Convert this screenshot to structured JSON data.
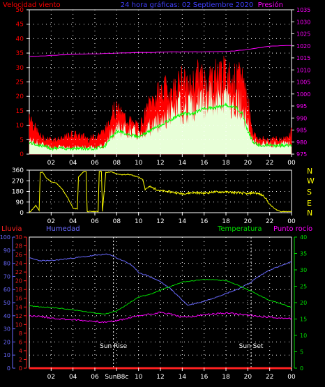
{
  "colors": {
    "wind": "#ff0000",
    "gust": "#ff0000",
    "wind_avg": "#00ff00",
    "wind_fill": "#e8ffd8",
    "title": "#4040ff",
    "pressure": "#ff00ff",
    "direction": "#ffff00",
    "rain": "#ff2020",
    "humidity": "#6a6aff",
    "temperature": "#00dd00",
    "dewpoint": "#ff00ff",
    "axis_white": "#ffffff",
    "sun_line": "#ffffff"
  },
  "chart_data": [
    {
      "type": "line",
      "title": "24 hora gráficas: 02 Septiembre 2020",
      "left_axis_label": "Velocidad viento",
      "right_axis_label": "Presión",
      "x_ticks": [
        "02",
        "04",
        "06",
        "08",
        "10",
        "12",
        "14",
        "16",
        "18",
        "20",
        "22",
        "00"
      ],
      "y_left_ticks": [
        "0",
        "5",
        "10",
        "15",
        "20",
        "25",
        "30",
        "35",
        "40",
        "45",
        "50"
      ],
      "y_left_range": [
        0,
        50
      ],
      "y_right_ticks": [
        "975",
        "980",
        "985",
        "990",
        "995",
        "1000",
        "1005",
        "1010",
        "1015",
        "1020",
        "1025",
        "1030",
        "1035"
      ],
      "y_right_range": [
        975,
        1035
      ],
      "grid": true,
      "series": [
        {
          "name": "gust",
          "x": [
            0,
            0.5,
            1,
            1.5,
            2,
            2.5,
            3,
            3.5,
            4,
            4.5,
            5,
            5.5,
            6,
            6.5,
            7,
            7.5,
            8,
            8.5,
            9,
            9.5,
            10,
            10.5,
            11,
            11.5,
            12,
            12.5,
            13,
            13.5,
            14,
            14.5,
            15,
            15.5,
            16,
            16.5,
            17,
            17.5,
            18,
            18.5,
            19,
            19.5,
            20,
            20.5,
            21,
            21.5,
            22,
            22.5,
            23,
            23.5,
            24
          ],
          "values": [
            14,
            9,
            6,
            5,
            5,
            5,
            5,
            6,
            7,
            6,
            6,
            5,
            6,
            7,
            8,
            14,
            15,
            13,
            12,
            10,
            9,
            12,
            17,
            19,
            21,
            22,
            21,
            23,
            25,
            22,
            24,
            27,
            25,
            26,
            27,
            28,
            27,
            26,
            25,
            27,
            18,
            7,
            5,
            5,
            5,
            5,
            5,
            5,
            8
          ]
        },
        {
          "name": "avg",
          "x": [
            0,
            1,
            2,
            3,
            4,
            5,
            6,
            7,
            7.5,
            8,
            9,
            10,
            11,
            12,
            13,
            14,
            15,
            16,
            17,
            18,
            19,
            19.5,
            20,
            20.5,
            21,
            22,
            23,
            24
          ],
          "values": [
            4,
            3,
            2,
            2,
            2,
            2,
            2,
            3,
            6,
            8,
            7,
            6,
            8,
            10,
            12,
            14,
            14,
            16,
            16,
            17,
            16,
            14,
            8,
            4,
            3,
            3,
            3,
            3
          ]
        },
        {
          "name": "pressure",
          "x": [
            0,
            2,
            4,
            6,
            8,
            10,
            12,
            14,
            16,
            18,
            19,
            20,
            21,
            22,
            23,
            24
          ],
          "values": [
            1015.5,
            1016,
            1016.5,
            1016.7,
            1017,
            1017.2,
            1017.4,
            1017.5,
            1017.5,
            1017.6,
            1018,
            1018.5,
            1019.2,
            1019.8,
            1020.1,
            1020.2
          ]
        }
      ]
    },
    {
      "type": "line",
      "title": "",
      "x_ticks": [
        "02",
        "04",
        "06",
        "08",
        "10",
        "12",
        "14",
        "16",
        "18",
        "20",
        "22",
        "00"
      ],
      "y_ticks": [
        "0",
        "90",
        "180",
        "270",
        "360"
      ],
      "y_range": [
        0,
        360
      ],
      "right_labels": [
        "N",
        "W",
        "S",
        "E",
        "N"
      ],
      "grid": true,
      "series": [
        {
          "name": "direction",
          "x": [
            0,
            0.3,
            0.6,
            0.9,
            1,
            1.2,
            1.5,
            2,
            2.5,
            3,
            3.5,
            4,
            4.4,
            4.5,
            5,
            5.2,
            5.3,
            6.3,
            6.4,
            6.6,
            6.7,
            7,
            7.5,
            8,
            8.5,
            9,
            9.5,
            10,
            10.4,
            10.6,
            11,
            12,
            13,
            14,
            15,
            16,
            17,
            18,
            19,
            20,
            20.5,
            21,
            21.5,
            22,
            22.5,
            23,
            24
          ],
          "values": [
            0,
            30,
            60,
            20,
            340,
            345,
            300,
            260,
            250,
            200,
            130,
            40,
            30,
            300,
            350,
            350,
            10,
            10,
            350,
            350,
            10,
            340,
            345,
            330,
            320,
            325,
            315,
            300,
            280,
            200,
            220,
            185,
            175,
            160,
            170,
            165,
            175,
            175,
            170,
            160,
            170,
            160,
            140,
            70,
            30,
            10,
            10
          ]
        }
      ]
    },
    {
      "type": "line",
      "title": "",
      "labels": {
        "rain": "Lluvia",
        "humidity": "Humedad",
        "temperature": "Temperatura",
        "dewpoint": "Punto rocío"
      },
      "x_ticks": [
        "02",
        "04",
        "06",
        "SunB8c",
        "10",
        "12",
        "14",
        "16",
        "18",
        "20",
        "22",
        "00"
      ],
      "y_humidity_ticks": [
        "0",
        "10",
        "20",
        "30",
        "40",
        "50",
        "60",
        "70",
        "80",
        "90",
        "100"
      ],
      "y_humidity_range": [
        0,
        100
      ],
      "y_rain_ticks": [
        "0",
        "2",
        "4",
        "6",
        "8",
        "10",
        "12",
        "14",
        "16",
        "18",
        "20",
        "22",
        "24",
        "26",
        "28",
        "30"
      ],
      "y_rain_range": [
        0,
        30
      ],
      "y_temp_ticks": [
        "0",
        "5",
        "10",
        "15",
        "20",
        "25",
        "30",
        "35",
        "40"
      ],
      "y_temp_range": [
        0,
        40
      ],
      "annotations": [
        {
          "text": "Sun Rise",
          "x": 7.7
        },
        {
          "text": "Sun Set",
          "x": 20.3
        }
      ],
      "grid": true,
      "series": [
        {
          "name": "rain",
          "x": [
            0,
            24
          ],
          "values": [
            0,
            0
          ]
        },
        {
          "name": "humidity",
          "x": [
            0,
            1,
            2,
            3,
            4,
            5,
            6,
            7,
            7.6,
            8,
            8.6,
            9.3,
            10,
            11,
            12,
            13,
            14,
            14.5,
            15,
            16,
            17,
            18,
            19,
            20,
            21,
            22,
            23,
            24
          ],
          "values": [
            84,
            82,
            82,
            83,
            84,
            85,
            86,
            87,
            86,
            84,
            82,
            79,
            73,
            70,
            66,
            60,
            52,
            48,
            49,
            51,
            54,
            57,
            60,
            64,
            70,
            75,
            78,
            81
          ]
        },
        {
          "name": "temperature",
          "x": [
            0,
            1,
            2,
            3,
            4,
            5,
            6,
            7,
            8,
            9,
            10,
            11,
            12,
            13,
            14,
            15,
            16,
            17,
            18,
            19,
            20,
            21,
            22,
            23,
            24
          ],
          "values": [
            19,
            18.7,
            18.5,
            18.2,
            17.8,
            17.3,
            16.8,
            16.6,
            17.5,
            19.5,
            21.7,
            22.5,
            23.8,
            25,
            26.3,
            26.7,
            27,
            27,
            26.7,
            25.5,
            24,
            22.3,
            20.7,
            19.8,
            18.5
          ]
        },
        {
          "name": "dewpoint",
          "x": [
            0,
            1,
            2,
            3,
            4,
            5,
            6,
            7,
            8,
            9,
            10,
            11,
            12,
            13,
            14,
            15,
            16,
            17,
            18,
            19,
            20,
            21,
            22,
            23,
            24
          ],
          "values": [
            16,
            15.8,
            15.3,
            15,
            14.8,
            14.5,
            14.3,
            14,
            14.5,
            15.2,
            16,
            16.5,
            17,
            16.5,
            15.5,
            15.8,
            16.3,
            16.6,
            16.8,
            16.5,
            16.2,
            15.8,
            15.6,
            15.3,
            15.2
          ]
        }
      ]
    }
  ]
}
